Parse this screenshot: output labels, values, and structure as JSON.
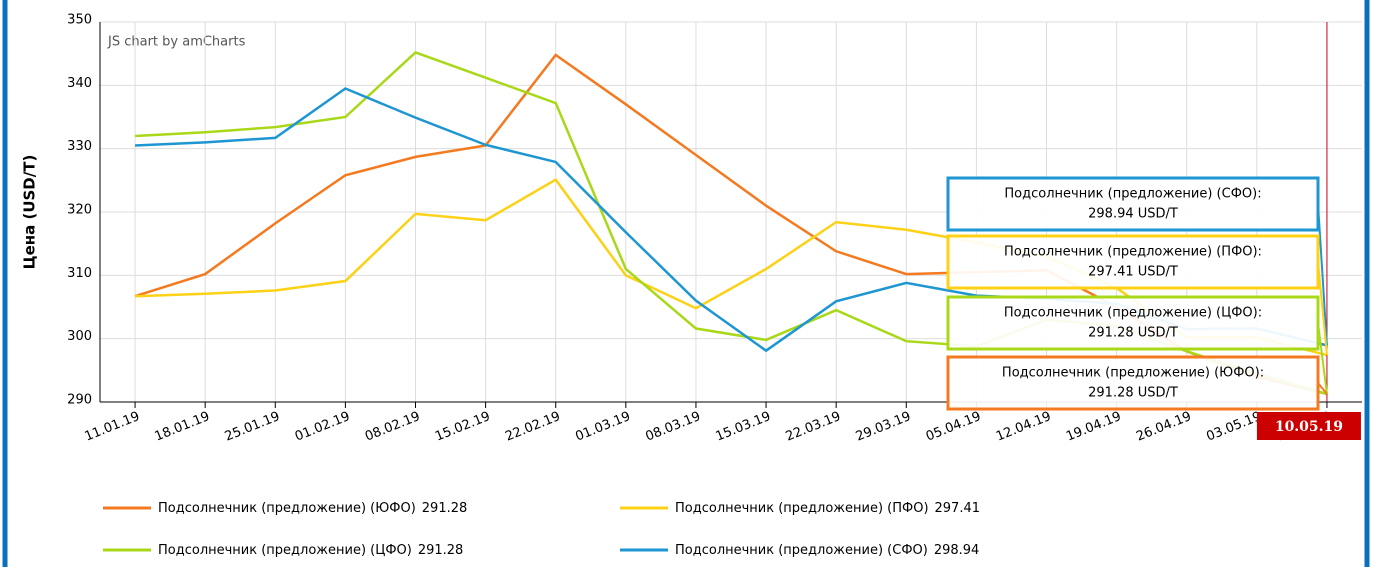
{
  "chart_data": {
    "type": "line",
    "credit": "JS chart by amCharts",
    "y_label": "Цена (USD/T)",
    "categories": [
      "11.01.19",
      "18.01.19",
      "25.01.19",
      "01.02.19",
      "08.02.19",
      "15.02.19",
      "22.02.19",
      "01.03.19",
      "08.03.19",
      "15.03.19",
      "22.03.19",
      "29.03.19",
      "05.04.19",
      "12.04.19",
      "19.04.19",
      "26.04.19",
      "03.05.19",
      "10.05.19"
    ],
    "ylim": [
      290,
      350
    ],
    "yticks": [
      290,
      300,
      310,
      320,
      330,
      340,
      350
    ],
    "grid": true,
    "series": [
      {
        "name": "Подсолнечник (предложение) (ЮФО)",
        "color": "#f47a20",
        "values": [
          306.7,
          310.2,
          318.2,
          325.8,
          328.7,
          330.5,
          344.8,
          337,
          329,
          321,
          313.8,
          310.2,
          310.5,
          310.8,
          305,
          298,
          294,
          291.28
        ]
      },
      {
        "name": "Подсолнечник (предложение) (ПФО)",
        "color": "#fcd116",
        "values": [
          306.7,
          307.1,
          307.6,
          309.1,
          319.7,
          318.7,
          325.1,
          310,
          304.8,
          311,
          318.4,
          317.2,
          315.2,
          313,
          308,
          300.2,
          300.2,
          297.41
        ]
      },
      {
        "name": "Подсолнечник (предложение) (ЦФО)",
        "color": "#a8d818",
        "values": [
          332,
          332.6,
          333.4,
          335,
          345.2,
          341.2,
          337.2,
          311,
          301.6,
          299.8,
          304.5,
          299.6,
          298.8,
          303,
          302,
          298,
          294.5,
          291.28
        ]
      },
      {
        "name": "Подсолнечник (предложение) (СФО)",
        "color": "#1e96d2",
        "values": [
          330.5,
          331,
          331.7,
          339.5,
          334.9,
          330.6,
          327.9,
          316.8,
          306,
          298.1,
          305.9,
          308.8,
          306.8,
          306.3,
          305.5,
          301.5,
          301.6,
          298.94
        ]
      }
    ],
    "tooltips": [
      {
        "series": 3,
        "title": "Подсолнечник (предложение) (СФО):",
        "text": "298.94 USD/T"
      },
      {
        "series": 1,
        "title": "Подсолнечник (предложение) (ПФО):",
        "text": "297.41 USD/T"
      },
      {
        "series": 2,
        "title": "Подсолнечник (предложение) (ЦФО):",
        "text": "291.28 USD/T"
      },
      {
        "series": 0,
        "title": "Подсолнечник (предложение) (ЮФО):",
        "text": "291.28 USD/T"
      }
    ],
    "cursor_index": 17
  }
}
